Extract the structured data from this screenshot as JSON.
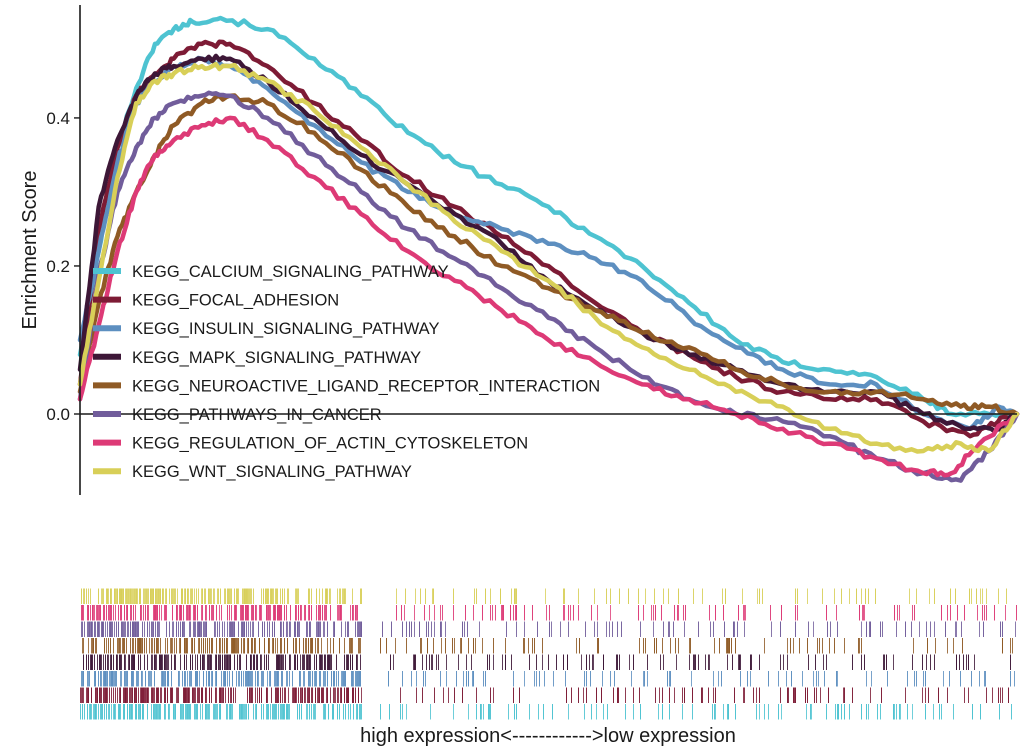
{
  "chart_data": {
    "type": "line",
    "title": "",
    "ylabel": "Enrichment Score",
    "xlabel": "high expression<------------>low expression",
    "ylim": [
      -0.11,
      0.55
    ],
    "xlim": [
      0,
      1
    ],
    "yticks": [
      0.0,
      0.2,
      0.4
    ],
    "ytick_labels": [
      "0.0",
      "0.2",
      "0.4"
    ],
    "zero_line": true,
    "legend_position": "left-middle",
    "series": [
      {
        "name": "KEGG_CALCIUM_SIGNALING_PATHWAY",
        "color": "#4ec3d1",
        "points": [
          [
            0,
            0.08
          ],
          [
            0.02,
            0.22
          ],
          [
            0.04,
            0.36
          ],
          [
            0.06,
            0.44
          ],
          [
            0.08,
            0.5
          ],
          [
            0.1,
            0.52
          ],
          [
            0.12,
            0.53
          ],
          [
            0.15,
            0.535
          ],
          [
            0.2,
            0.52
          ],
          [
            0.25,
            0.48
          ],
          [
            0.3,
            0.43
          ],
          [
            0.35,
            0.38
          ],
          [
            0.4,
            0.34
          ],
          [
            0.45,
            0.31
          ],
          [
            0.5,
            0.28
          ],
          [
            0.55,
            0.24
          ],
          [
            0.6,
            0.2
          ],
          [
            0.65,
            0.15
          ],
          [
            0.7,
            0.1
          ],
          [
            0.75,
            0.07
          ],
          [
            0.8,
            0.06
          ],
          [
            0.85,
            0.05
          ],
          [
            0.9,
            0.02
          ],
          [
            0.93,
            0.0
          ],
          [
            0.97,
            0.0
          ],
          [
            1.0,
            0.0
          ]
        ]
      },
      {
        "name": "KEGG_FOCAL_ADHESION",
        "color": "#7d1b35",
        "points": [
          [
            0,
            0.04
          ],
          [
            0.02,
            0.25
          ],
          [
            0.04,
            0.36
          ],
          [
            0.06,
            0.43
          ],
          [
            0.08,
            0.46
          ],
          [
            0.1,
            0.48
          ],
          [
            0.13,
            0.5
          ],
          [
            0.16,
            0.5
          ],
          [
            0.2,
            0.47
          ],
          [
            0.25,
            0.42
          ],
          [
            0.3,
            0.37
          ],
          [
            0.35,
            0.32
          ],
          [
            0.4,
            0.28
          ],
          [
            0.45,
            0.24
          ],
          [
            0.5,
            0.2
          ],
          [
            0.55,
            0.15
          ],
          [
            0.6,
            0.11
          ],
          [
            0.65,
            0.08
          ],
          [
            0.7,
            0.05
          ],
          [
            0.75,
            0.03
          ],
          [
            0.8,
            0.02
          ],
          [
            0.85,
            0.02
          ],
          [
            0.9,
            -0.01
          ],
          [
            0.95,
            -0.03
          ],
          [
            0.98,
            -0.01
          ],
          [
            1.0,
            0.0
          ]
        ]
      },
      {
        "name": "KEGG_INSULIN_SIGNALING_PATHWAY",
        "color": "#5d8fc0",
        "points": [
          [
            0,
            0.1
          ],
          [
            0.02,
            0.22
          ],
          [
            0.04,
            0.34
          ],
          [
            0.06,
            0.42
          ],
          [
            0.08,
            0.45
          ],
          [
            0.1,
            0.47
          ],
          [
            0.13,
            0.48
          ],
          [
            0.16,
            0.47
          ],
          [
            0.2,
            0.44
          ],
          [
            0.25,
            0.39
          ],
          [
            0.3,
            0.34
          ],
          [
            0.35,
            0.3
          ],
          [
            0.4,
            0.27
          ],
          [
            0.45,
            0.25
          ],
          [
            0.5,
            0.23
          ],
          [
            0.55,
            0.21
          ],
          [
            0.6,
            0.18
          ],
          [
            0.65,
            0.13
          ],
          [
            0.7,
            0.09
          ],
          [
            0.75,
            0.06
          ],
          [
            0.8,
            0.04
          ],
          [
            0.85,
            0.04
          ],
          [
            0.9,
            0.0
          ],
          [
            0.95,
            -0.02
          ],
          [
            0.98,
            0.01
          ],
          [
            1.0,
            0.0
          ]
        ]
      },
      {
        "name": "KEGG_MAPK_SIGNALING_PATHWAY",
        "color": "#3d1737",
        "points": [
          [
            0,
            0.06
          ],
          [
            0.02,
            0.28
          ],
          [
            0.04,
            0.37
          ],
          [
            0.06,
            0.43
          ],
          [
            0.08,
            0.46
          ],
          [
            0.1,
            0.47
          ],
          [
            0.13,
            0.48
          ],
          [
            0.16,
            0.48
          ],
          [
            0.2,
            0.45
          ],
          [
            0.25,
            0.4
          ],
          [
            0.3,
            0.35
          ],
          [
            0.35,
            0.31
          ],
          [
            0.4,
            0.27
          ],
          [
            0.45,
            0.23
          ],
          [
            0.5,
            0.18
          ],
          [
            0.55,
            0.14
          ],
          [
            0.6,
            0.11
          ],
          [
            0.65,
            0.08
          ],
          [
            0.7,
            0.06
          ],
          [
            0.75,
            0.04
          ],
          [
            0.8,
            0.03
          ],
          [
            0.85,
            0.03
          ],
          [
            0.9,
            0.0
          ],
          [
            0.95,
            -0.02
          ],
          [
            0.98,
            -0.02
          ],
          [
            1.0,
            0.0
          ]
        ]
      },
      {
        "name": "KEGG_NEUROACTIVE_LIGAND_RECEPTOR_INTERACTION",
        "color": "#8f5a25",
        "points": [
          [
            0,
            0.03
          ],
          [
            0.02,
            0.15
          ],
          [
            0.04,
            0.24
          ],
          [
            0.06,
            0.3
          ],
          [
            0.08,
            0.35
          ],
          [
            0.1,
            0.39
          ],
          [
            0.13,
            0.42
          ],
          [
            0.16,
            0.43
          ],
          [
            0.2,
            0.42
          ],
          [
            0.25,
            0.38
          ],
          [
            0.3,
            0.33
          ],
          [
            0.35,
            0.28
          ],
          [
            0.4,
            0.24
          ],
          [
            0.45,
            0.2
          ],
          [
            0.5,
            0.17
          ],
          [
            0.55,
            0.14
          ],
          [
            0.6,
            0.11
          ],
          [
            0.65,
            0.09
          ],
          [
            0.7,
            0.06
          ],
          [
            0.75,
            0.04
          ],
          [
            0.8,
            0.03
          ],
          [
            0.85,
            0.03
          ],
          [
            0.9,
            0.02
          ],
          [
            0.94,
            0.01
          ],
          [
            0.97,
            0.01
          ],
          [
            1.0,
            0.0
          ]
        ]
      },
      {
        "name": "KEGG_PATHWAYS_IN_CANCER",
        "color": "#715d9b",
        "points": [
          [
            0,
            0.02
          ],
          [
            0.02,
            0.19
          ],
          [
            0.04,
            0.3
          ],
          [
            0.06,
            0.36
          ],
          [
            0.08,
            0.4
          ],
          [
            0.1,
            0.42
          ],
          [
            0.13,
            0.43
          ],
          [
            0.16,
            0.43
          ],
          [
            0.2,
            0.4
          ],
          [
            0.25,
            0.35
          ],
          [
            0.3,
            0.3
          ],
          [
            0.35,
            0.25
          ],
          [
            0.4,
            0.21
          ],
          [
            0.45,
            0.17
          ],
          [
            0.5,
            0.13
          ],
          [
            0.55,
            0.09
          ],
          [
            0.6,
            0.05
          ],
          [
            0.65,
            0.02
          ],
          [
            0.7,
            0.0
          ],
          [
            0.75,
            -0.01
          ],
          [
            0.8,
            -0.03
          ],
          [
            0.85,
            -0.06
          ],
          [
            0.9,
            -0.08
          ],
          [
            0.94,
            -0.09
          ],
          [
            0.97,
            -0.05
          ],
          [
            1.0,
            0.0
          ]
        ]
      },
      {
        "name": "KEGG_REGULATION_OF_ACTIN_CYTOSKELETON",
        "color": "#dd3a76",
        "points": [
          [
            0,
            0.02
          ],
          [
            0.02,
            0.12
          ],
          [
            0.04,
            0.22
          ],
          [
            0.06,
            0.3
          ],
          [
            0.08,
            0.35
          ],
          [
            0.1,
            0.37
          ],
          [
            0.13,
            0.39
          ],
          [
            0.16,
            0.4
          ],
          [
            0.2,
            0.37
          ],
          [
            0.25,
            0.32
          ],
          [
            0.3,
            0.27
          ],
          [
            0.35,
            0.22
          ],
          [
            0.4,
            0.18
          ],
          [
            0.45,
            0.14
          ],
          [
            0.5,
            0.1
          ],
          [
            0.55,
            0.07
          ],
          [
            0.6,
            0.04
          ],
          [
            0.65,
            0.02
          ],
          [
            0.7,
            0.0
          ],
          [
            0.75,
            -0.02
          ],
          [
            0.8,
            -0.04
          ],
          [
            0.85,
            -0.06
          ],
          [
            0.9,
            -0.08
          ],
          [
            0.93,
            -0.08
          ],
          [
            0.96,
            -0.04
          ],
          [
            1.0,
            0.0
          ]
        ]
      },
      {
        "name": "KEGG_WNT_SIGNALING_PATHWAY",
        "color": "#d8cf58",
        "points": [
          [
            0,
            0.04
          ],
          [
            0.02,
            0.18
          ],
          [
            0.04,
            0.32
          ],
          [
            0.06,
            0.42
          ],
          [
            0.08,
            0.45
          ],
          [
            0.1,
            0.46
          ],
          [
            0.13,
            0.47
          ],
          [
            0.16,
            0.47
          ],
          [
            0.2,
            0.45
          ],
          [
            0.25,
            0.41
          ],
          [
            0.3,
            0.36
          ],
          [
            0.35,
            0.31
          ],
          [
            0.4,
            0.26
          ],
          [
            0.45,
            0.22
          ],
          [
            0.5,
            0.18
          ],
          [
            0.55,
            0.13
          ],
          [
            0.6,
            0.09
          ],
          [
            0.65,
            0.06
          ],
          [
            0.7,
            0.03
          ],
          [
            0.75,
            0.01
          ],
          [
            0.8,
            -0.02
          ],
          [
            0.85,
            -0.04
          ],
          [
            0.9,
            -0.05
          ],
          [
            0.94,
            -0.04
          ],
          [
            0.97,
            -0.05
          ],
          [
            1.0,
            0.0
          ]
        ]
      }
    ]
  }
}
